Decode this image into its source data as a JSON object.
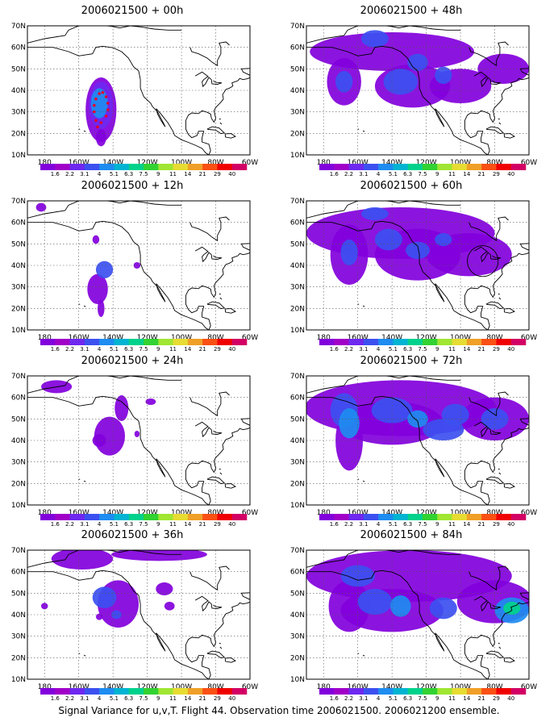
{
  "caption": "Signal Variance for u,v,T. Flight 44. Observation time 2006021500. 2006021200 ensemble.",
  "lat_labels": [
    "70N",
    "60N",
    "50N",
    "40N",
    "30N",
    "20N",
    "10N"
  ],
  "lon_labels": [
    "180",
    "160W",
    "140W",
    "120W",
    "100W",
    "80W",
    "60W"
  ],
  "colorbar": {
    "labels": [
      "1.6",
      "2.2",
      "3.1",
      "4",
      "5.1",
      "6.3",
      "7.5",
      "9",
      "11",
      "14",
      "21",
      "29",
      "40"
    ],
    "colors": [
      "#8200dc",
      "#a000c8",
      "#6e28f0",
      "#3c50f0",
      "#1e8cf0",
      "#00b4d2",
      "#00d28c",
      "#32d232",
      "#a0e632",
      "#e6dc32",
      "#f0a028",
      "#fa5014",
      "#f00000",
      "#d20064"
    ]
  },
  "panels": [
    {
      "id": "p00",
      "title": "2006021500 + 00h",
      "col": 0,
      "row": 0
    },
    {
      "id": "p48",
      "title": "2006021500 + 48h",
      "col": 1,
      "row": 0
    },
    {
      "id": "p12",
      "title": "2006021500 + 12h",
      "col": 0,
      "row": 1
    },
    {
      "id": "p60",
      "title": "2006021500 + 60h",
      "col": 1,
      "row": 1
    },
    {
      "id": "p24",
      "title": "2006021500 + 24h",
      "col": 0,
      "row": 2
    },
    {
      "id": "p72",
      "title": "2006021500 + 72h",
      "col": 1,
      "row": 2
    },
    {
      "id": "p36",
      "title": "2006021500 + 36h",
      "col": 0,
      "row": 3
    },
    {
      "id": "p84",
      "title": "2006021500 + 84h",
      "col": 1,
      "row": 3
    }
  ]
}
